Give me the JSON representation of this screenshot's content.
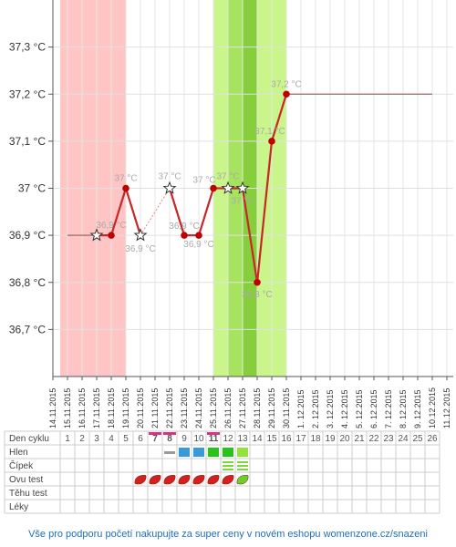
{
  "chart_data": {
    "type": "line",
    "x": [
      "14.11.2015",
      "15.11.2015",
      "16.11.2015",
      "17.11.2015",
      "18.11.2015",
      "19.11.2015",
      "20.11.2015",
      "21.11.2015",
      "22.11.2015",
      "23.11.2015",
      "24.11.2015",
      "25.11.2015",
      "26.11.2015",
      "27.11.2015",
      "28.11.2015",
      "29.11.2015",
      "30.11.2015",
      "1. 12.2015",
      "2. 12.2015",
      "3. 12.2015",
      "4. 12.2015",
      "5. 12.2015",
      "6. 12.2015",
      "7. 12.2015",
      "8. 12.2015",
      "9. 12.2015",
      "10.12.2015",
      "11.12.2015"
    ],
    "ylim": [
      36.6,
      37.4
    ],
    "yticks": [
      {
        "value": 36.7,
        "label": "36,7 °C"
      },
      {
        "value": 36.8,
        "label": "36,8 °C"
      },
      {
        "value": 36.9,
        "label": "36,9 °C"
      },
      {
        "value": 37.0,
        "label": "37 °C"
      },
      {
        "value": 37.1,
        "label": "37,1 °C"
      },
      {
        "value": 37.2,
        "label": "37,2 °C"
      },
      {
        "value": 37.3,
        "label": "37,3 °C"
      }
    ],
    "points": [
      {
        "x": "17.11.2015",
        "y": 36.9,
        "marker": "star",
        "label": ""
      },
      {
        "x": "18.11.2015",
        "y": 36.9,
        "marker": "dot",
        "label": "36,9 °C"
      },
      {
        "x": "19.11.2015",
        "y": 37.0,
        "marker": "dot",
        "label": "37 °C"
      },
      {
        "x": "20.11.2015",
        "y": 36.9,
        "marker": "star",
        "label": "36,9 °C"
      },
      {
        "x": "22.11.2015",
        "y": 37.0,
        "marker": "star",
        "label": "37 °C"
      },
      {
        "x": "23.11.2015",
        "y": 36.9,
        "marker": "dot",
        "label": "36,9 °C"
      },
      {
        "x": "24.11.2015",
        "y": 36.9,
        "marker": "dot",
        "label": "36,9 °C"
      },
      {
        "x": "25.11.2015",
        "y": 37.0,
        "marker": "dot",
        "label": "37 °C"
      },
      {
        "x": "26.11.2015",
        "y": 37.0,
        "marker": "star",
        "label": "37 °C"
      },
      {
        "x": "27.11.2015",
        "y": 37.0,
        "marker": "star",
        "label": "37 °C"
      },
      {
        "x": "28.11.2015",
        "y": 36.8,
        "marker": "dot",
        "label": "36,8 °C"
      },
      {
        "x": "29.11.2015",
        "y": 37.1,
        "marker": "dot",
        "label": "37,1 °C"
      },
      {
        "x": "30.11.2015",
        "y": 37.2,
        "marker": "dot",
        "label": "37,2 °C"
      }
    ],
    "flat_start": {
      "from": "15.11.2015",
      "to": "17.11.2015",
      "y": 36.9
    },
    "flat_end": {
      "from": "30.11.2015",
      "to": "10.12.2015",
      "y": 37.2
    },
    "bands": [
      {
        "from": "14.11.2015",
        "to": "19.11.2015",
        "color": "#ffc4c4",
        "meaning": "period"
      },
      {
        "from": "25.11.2015",
        "to": "26.11.2015",
        "color": "#c9f58a",
        "meaning": "fertile"
      },
      {
        "from": "26.11.2015",
        "to": "27.11.2015",
        "color": "#a6e460",
        "meaning": "fertile"
      },
      {
        "from": "27.11.2015",
        "to": "28.11.2015",
        "color": "#86cf3a",
        "meaning": "ovulation"
      },
      {
        "from": "28.11.2015",
        "to": "30.11.2015",
        "color": "#c9f58a",
        "meaning": "fertile"
      },
      {
        "from": "30.11.2015",
        "to": "30.5",
        "color": "#f4f9dc",
        "meaning": "end"
      }
    ],
    "line_color": "#c62828"
  },
  "table": {
    "header_label": "Den cyklu",
    "days": [
      "1",
      "2",
      "3",
      "4",
      "5",
      "6",
      "7",
      "8",
      "9",
      "10",
      "11",
      "12",
      "13",
      "14",
      "15",
      "16",
      "17",
      "18",
      "19",
      "20",
      "21",
      "22",
      "23",
      "24",
      "25",
      "26"
    ],
    "highlight_days": [
      7,
      8,
      11
    ],
    "highlight_color": "#d63384",
    "rows": [
      {
        "label": "Hlen",
        "cells": [
          {
            "day": 8,
            "kind": "dash",
            "color": "#999999"
          },
          {
            "day": 9,
            "kind": "block",
            "color": "#3a9ad9"
          },
          {
            "day": 10,
            "kind": "block",
            "color": "#3a9ad9"
          },
          {
            "day": 11,
            "kind": "block",
            "color": "#27c21a"
          },
          {
            "day": 12,
            "kind": "block",
            "color": "#27c21a"
          },
          {
            "day": 13,
            "kind": "block",
            "color": "#93e23a"
          }
        ]
      },
      {
        "label": "Čípek",
        "cells": [
          {
            "day": 12,
            "kind": "stripes",
            "color": "#7fd63a"
          },
          {
            "day": 13,
            "kind": "stripes",
            "color": "#7fd63a"
          }
        ]
      },
      {
        "label": "Ovu test",
        "cells": [
          {
            "day": 6,
            "kind": "drop",
            "color": "#d62020"
          },
          {
            "day": 7,
            "kind": "drop",
            "color": "#d62020"
          },
          {
            "day": 8,
            "kind": "drop",
            "color": "#d62020"
          },
          {
            "day": 9,
            "kind": "drop",
            "color": "#d62020"
          },
          {
            "day": 10,
            "kind": "drop",
            "color": "#d62020"
          },
          {
            "day": 11,
            "kind": "drop",
            "color": "#d62020"
          },
          {
            "day": 12,
            "kind": "drop",
            "color": "#d62020"
          },
          {
            "day": 13,
            "kind": "drop",
            "color": "#6ecf2a"
          }
        ]
      },
      {
        "label": "Těhu test",
        "cells": []
      },
      {
        "label": "Léky",
        "cells": []
      }
    ]
  },
  "footer": {
    "text": "Vše pro podporu početí nakupujte za super ceny v novém eshopu womenzone.cz/snazeni"
  }
}
